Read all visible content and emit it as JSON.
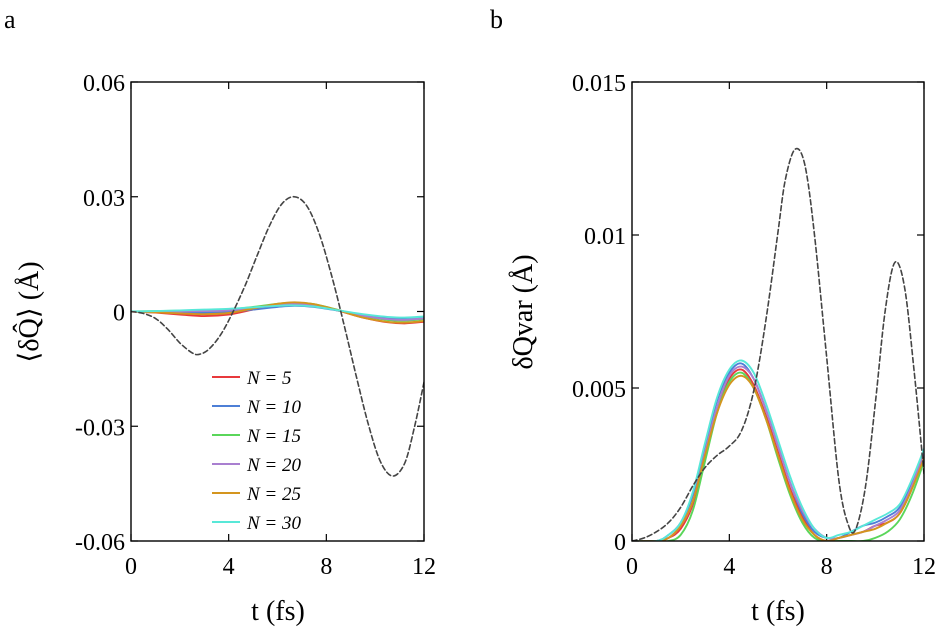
{
  "chart_data": [
    {
      "panel": "a",
      "type": "line",
      "xlabel": "t (fs)",
      "ylabel": "⟨δQ̂⟩ (Å)",
      "xlim": [
        0,
        12
      ],
      "ylim": [
        -0.06,
        0.06
      ],
      "xticks": [
        0,
        4,
        8,
        12
      ],
      "xtick_labels": [
        "0",
        "4",
        "8",
        "12"
      ],
      "yticks": [
        -0.06,
        -0.03,
        0,
        0.03,
        0.06
      ],
      "ytick_labels": [
        "-0.06",
        "-0.03",
        "0",
        "0.03",
        "0.06"
      ],
      "grid": false,
      "legend": {
        "placement": "lower-center",
        "entries": [
          "N = 5",
          "N = 10",
          "N = 15",
          "N = 20",
          "N = 25",
          "N = 30"
        ]
      },
      "colors": {
        "N = 5": "#e8393c",
        "N = 10": "#4d7fd6",
        "N = 15": "#5ad65a",
        "N = 20": "#a97fd0",
        "N = 25": "#d4951e",
        "N = 30": "#58e8d8",
        "reference": "#444444"
      },
      "series": [
        {
          "name": "N = 5",
          "x": [
            0,
            1,
            2,
            3,
            4,
            5,
            6,
            6.7,
            7.5,
            8.5,
            9.5,
            10.5,
            11.2,
            12
          ],
          "y": [
            0,
            -0.0003,
            -0.0008,
            -0.0012,
            -0.0008,
            0.0005,
            0.0017,
            0.0021,
            0.0017,
            0.0002,
            -0.0016,
            -0.0028,
            -0.0031,
            -0.0027
          ]
        },
        {
          "name": "N = 10",
          "x": [
            0,
            1,
            2,
            3,
            4,
            5,
            6,
            6.7,
            7.5,
            8.5,
            9.5,
            10.5,
            11.2,
            12
          ],
          "y": [
            0,
            -0.0001,
            -0.0002,
            -0.0003,
            -0.0001,
            0.0005,
            0.0012,
            0.0015,
            0.0012,
            0.0002,
            -0.001,
            -0.0018,
            -0.002,
            -0.0017
          ]
        },
        {
          "name": "N = 15",
          "x": [
            0,
            1,
            2,
            3,
            4,
            5,
            6,
            6.7,
            7.5,
            8.5,
            9.5,
            10.5,
            11.2,
            12
          ],
          "y": [
            0,
            0.0001,
            0.0002,
            0.0003,
            0.0005,
            0.0012,
            0.002,
            0.0023,
            0.0019,
            0.0004,
            -0.0012,
            -0.0022,
            -0.0024,
            -0.002
          ]
        },
        {
          "name": "N = 20",
          "x": [
            0,
            1,
            2,
            3,
            4,
            5,
            6,
            6.7,
            7.5,
            8.5,
            9.5,
            10.5,
            11.2,
            12
          ],
          "y": [
            0,
            0.0,
            0.0,
            0.0001,
            0.0003,
            0.0009,
            0.0017,
            0.002,
            0.0016,
            0.0003,
            -0.0011,
            -0.002,
            -0.0022,
            -0.0018
          ]
        },
        {
          "name": "N = 25",
          "x": [
            0,
            1,
            2,
            3,
            4,
            5,
            6,
            6.7,
            7.5,
            8.5,
            9.5,
            10.5,
            11.2,
            12
          ],
          "y": [
            0,
            -0.0002,
            -0.0005,
            -0.0007,
            -0.0004,
            0.0008,
            0.002,
            0.0024,
            0.0019,
            0.0003,
            -0.0016,
            -0.0027,
            -0.0029,
            -0.0025
          ]
        },
        {
          "name": "N = 30",
          "x": [
            0,
            1,
            2,
            3,
            4,
            5,
            6,
            6.7,
            7.5,
            8.5,
            9.5,
            10.5,
            11.2,
            12
          ],
          "y": [
            0,
            0.0001,
            0.0003,
            0.0005,
            0.0007,
            0.0011,
            0.0015,
            0.0016,
            0.0013,
            0.0003,
            -0.0007,
            -0.0014,
            -0.0016,
            -0.0013
          ]
        },
        {
          "name": "",
          "style": "dashed",
          "x": [
            0,
            0.5,
            1,
            1.5,
            2,
            2.5,
            2.8,
            3.2,
            3.7,
            4.2,
            4.7,
            5.2,
            5.7,
            6.2,
            6.7,
            7.2,
            7.7,
            8.2,
            8.7,
            9.2,
            9.7,
            10.2,
            10.7,
            11.2,
            11.6,
            12
          ],
          "y": [
            0,
            -0.0005,
            -0.0018,
            -0.0046,
            -0.0082,
            -0.0108,
            -0.0112,
            -0.0098,
            -0.0058,
            0.0002,
            0.0072,
            0.0152,
            0.0228,
            0.0283,
            0.03,
            0.0276,
            0.0205,
            0.0098,
            -0.0028,
            -0.0162,
            -0.029,
            -0.039,
            -0.043,
            -0.0398,
            -0.0305,
            -0.0185
          ]
        }
      ]
    },
    {
      "panel": "b",
      "type": "line",
      "xlabel": "t (fs)",
      "ylabel": "δQvar (Å)",
      "xlim": [
        0,
        12
      ],
      "ylim": [
        0,
        0.015
      ],
      "xticks": [
        0,
        4,
        8,
        12
      ],
      "xtick_labels": [
        "0",
        "4",
        "8",
        "12"
      ],
      "yticks": [
        0,
        0.005,
        0.01,
        0.015
      ],
      "ytick_labels": [
        "0",
        "0.005",
        "0.01",
        "0.015"
      ],
      "grid": false,
      "colors": {
        "N = 5": "#e8393c",
        "N = 10": "#4d7fd6",
        "N = 15": "#5ad65a",
        "N = 20": "#a97fd0",
        "N = 25": "#d4951e",
        "N = 30": "#58e8d8",
        "reference": "#444444"
      },
      "series": [
        {
          "name": "N = 5",
          "x": [
            0,
            1,
            1.5,
            2,
            2.5,
            3,
            3.5,
            4,
            4.5,
            5,
            5.5,
            6,
            6.5,
            7,
            7.5,
            8,
            8.5,
            9,
            9.5,
            10,
            10.5,
            11,
            11.5,
            12
          ],
          "y": [
            0,
            0,
            0.0001,
            0.0004,
            0.0012,
            0.0028,
            0.0043,
            0.0053,
            0.0056,
            0.0051,
            0.0041,
            0.0029,
            0.0017,
            0.0008,
            0.0002,
            0,
            0.0001,
            0.0002,
            0.0003,
            0.0005,
            0.0006,
            0.0009,
            0.0017,
            0.0028
          ]
        },
        {
          "name": "N = 10",
          "x": [
            0,
            1,
            1.5,
            2,
            2.5,
            3,
            3.5,
            4,
            4.5,
            5,
            5.5,
            6,
            6.5,
            7,
            7.5,
            8,
            8.5,
            9,
            9.5,
            10,
            10.5,
            11,
            11.5,
            12
          ],
          "y": [
            0,
            0,
            0.0002,
            0.0006,
            0.0015,
            0.0031,
            0.0046,
            0.0055,
            0.0058,
            0.0053,
            0.0043,
            0.0031,
            0.0019,
            0.0009,
            0.0003,
            0.0001,
            0.0001,
            0.0003,
            0.0005,
            0.0006,
            0.0008,
            0.0011,
            0.0019,
            0.003
          ]
        },
        {
          "name": "N = 15",
          "x": [
            0,
            1,
            1.5,
            2,
            2.5,
            3,
            3.5,
            4,
            4.5,
            5,
            5.5,
            6,
            6.5,
            7,
            7.5,
            8,
            8.5,
            9,
            9.5,
            10,
            10.5,
            11,
            11.5,
            12
          ],
          "y": [
            0,
            0,
            0,
            0.0002,
            0.001,
            0.0026,
            0.0042,
            0.0052,
            0.0055,
            0.005,
            0.004,
            0.0027,
            0.0015,
            0.0006,
            0.0001,
            0,
            0,
            0,
            0,
            0.0001,
            0.0003,
            0.0007,
            0.0015,
            0.0026
          ]
        },
        {
          "name": "N = 20",
          "x": [
            0,
            1,
            1.5,
            2,
            2.5,
            3,
            3.5,
            4,
            4.5,
            5,
            5.5,
            6,
            6.5,
            7,
            7.5,
            8,
            8.5,
            9,
            9.5,
            10,
            10.5,
            11,
            11.5,
            12
          ],
          "y": [
            0,
            0,
            0.0001,
            0.0005,
            0.0013,
            0.0029,
            0.0044,
            0.0054,
            0.0057,
            0.0053,
            0.0043,
            0.0031,
            0.0019,
            0.001,
            0.0004,
            0.0001,
            0.0001,
            0.0002,
            0.0003,
            0.0005,
            0.0007,
            0.001,
            0.0018,
            0.0029
          ]
        },
        {
          "name": "N = 25",
          "x": [
            0,
            1,
            1.5,
            2,
            2.5,
            3,
            3.5,
            4,
            4.5,
            5,
            5.5,
            6,
            6.5,
            7,
            7.5,
            8,
            8.5,
            9,
            9.5,
            10,
            10.5,
            11,
            11.5,
            12
          ],
          "y": [
            0,
            0,
            0.0001,
            0.0005,
            0.0013,
            0.0028,
            0.0042,
            0.0051,
            0.0054,
            0.005,
            0.004,
            0.0028,
            0.0016,
            0.0007,
            0.0002,
            0,
            0.0001,
            0.0002,
            0.0003,
            0.0004,
            0.0006,
            0.0009,
            0.0017,
            0.0027
          ]
        },
        {
          "name": "N = 30",
          "x": [
            0,
            1,
            1.5,
            2,
            2.5,
            3,
            3.5,
            4,
            4.5,
            5,
            5.5,
            6,
            6.5,
            7,
            7.5,
            8,
            8.5,
            9,
            9.5,
            10,
            10.5,
            11,
            11.5,
            12
          ],
          "y": [
            0,
            0,
            0.0002,
            0.0006,
            0.0016,
            0.0032,
            0.0047,
            0.0056,
            0.0059,
            0.0055,
            0.0045,
            0.0033,
            0.0021,
            0.0011,
            0.0004,
            0.0001,
            0.0002,
            0.0003,
            0.0005,
            0.0007,
            0.0009,
            0.0012,
            0.002,
            0.003
          ]
        },
        {
          "name": "",
          "style": "dashed",
          "x": [
            0,
            0.5,
            1,
            1.5,
            2,
            2.5,
            3,
            3.5,
            4,
            4.5,
            5,
            5.5,
            6,
            6.3,
            6.7,
            7.1,
            7.5,
            8,
            8.5,
            8.9,
            9.2,
            9.6,
            10,
            10.4,
            10.8,
            11.2,
            11.6,
            12
          ],
          "y": [
            0,
            0.0001,
            0.0003,
            0.0006,
            0.0011,
            0.0018,
            0.0024,
            0.0028,
            0.0031,
            0.0036,
            0.0049,
            0.0072,
            0.0101,
            0.0118,
            0.0128,
            0.0123,
            0.01,
            0.006,
            0.002,
            0.0005,
            0.0004,
            0.0018,
            0.0045,
            0.0075,
            0.0091,
            0.0083,
            0.0055,
            0.0022
          ]
        }
      ]
    }
  ]
}
